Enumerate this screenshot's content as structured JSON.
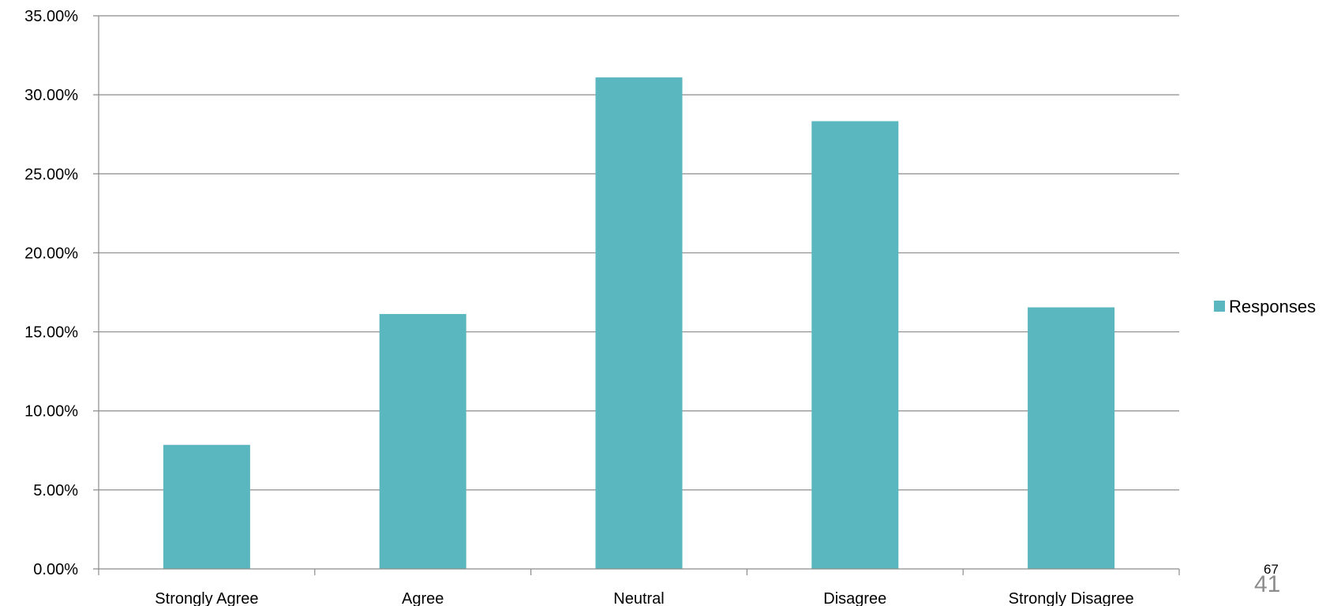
{
  "chart_data": {
    "type": "bar",
    "categories": [
      "Strongly Agree",
      "Agree",
      "Neutral",
      "Disagree",
      "Strongly Disagree"
    ],
    "series": [
      {
        "name": "Responses",
        "values": [
          7.85,
          16.13,
          31.1,
          28.33,
          16.55
        ],
        "color": "#5ab6bf"
      }
    ],
    "ylim": [
      0,
      35
    ],
    "yticks": [
      "0.00%",
      "5.00%",
      "10.00%",
      "15.00%",
      "20.00%",
      "25.00%",
      "30.00%",
      "35.00%"
    ],
    "grid": true,
    "legend_position": "right"
  },
  "page_numbers": {
    "small": "67",
    "large": "41"
  }
}
